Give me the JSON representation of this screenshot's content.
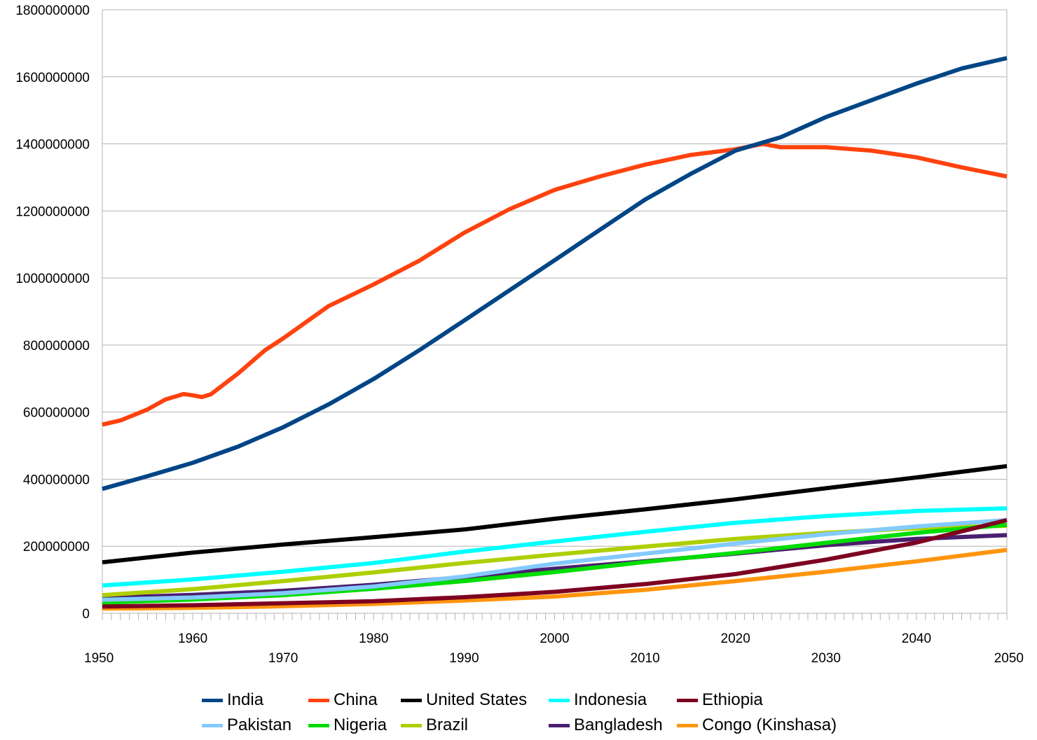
{
  "chart_data": {
    "type": "line",
    "title": "",
    "xlabel": "",
    "ylabel": "",
    "xlim": [
      1950,
      2050
    ],
    "ylim": [
      0,
      1800000000
    ],
    "grid": "horizontal",
    "legend_position": "bottom",
    "y_ticks": [
      "1800000000",
      "1600000000",
      "1400000000",
      "1200000000",
      "1000000000",
      "800000000",
      "600000000",
      "400000000",
      "200000000",
      "0"
    ],
    "x_ticks_upper": [
      "1960",
      "1980",
      "2000",
      "2020",
      "2040"
    ],
    "x_ticks_lower": [
      "1950",
      "1970",
      "1990",
      "2010",
      "2030",
      "2050"
    ],
    "series": [
      {
        "name": "India",
        "color": "#004586",
        "x": [
          1950,
          1955,
          1960,
          1965,
          1970,
          1975,
          1980,
          1985,
          1990,
          1995,
          2000,
          2005,
          2010,
          2015,
          2020,
          2025,
          2030,
          2035,
          2040,
          2045,
          2050
        ],
        "values": [
          371000000,
          409000000,
          449000000,
          497000000,
          555000000,
          623000000,
          699000000,
          784000000,
          873000000,
          963000000,
          1053000000,
          1144000000,
          1234000000,
          1310000000,
          1380000000,
          1420000000,
          1480000000,
          1530000000,
          1580000000,
          1625000000,
          1656000000
        ]
      },
      {
        "name": "China",
        "color": "#ff420e",
        "x": [
          1950,
          1952,
          1955,
          1957,
          1959,
          1960,
          1961,
          1962,
          1965,
          1968,
          1970,
          1975,
          1980,
          1985,
          1990,
          1995,
          2000,
          2005,
          2010,
          2015,
          2020,
          2023,
          2025,
          2030,
          2035,
          2040,
          2045,
          2050
        ],
        "values": [
          563000000,
          575000000,
          608000000,
          638000000,
          654000000,
          650000000,
          645000000,
          653000000,
          715000000,
          785000000,
          820000000,
          916000000,
          981000000,
          1051000000,
          1135000000,
          1205000000,
          1263000000,
          1303000000,
          1338000000,
          1367000000,
          1384000000,
          1400000000,
          1390000000,
          1390000000,
          1380000000,
          1360000000,
          1330000000,
          1303000000
        ]
      },
      {
        "name": "United States",
        "color": "#000000",
        "x": [
          1950,
          1960,
          1970,
          1980,
          1990,
          2000,
          2010,
          2020,
          2030,
          2040,
          2050
        ],
        "values": [
          152000000,
          181000000,
          205000000,
          227000000,
          250000000,
          282000000,
          310000000,
          340000000,
          373000000,
          405000000,
          439000000
        ]
      },
      {
        "name": "Indonesia",
        "color": "#00ffff",
        "x": [
          1950,
          1960,
          1970,
          1980,
          1990,
          2000,
          2010,
          2020,
          2030,
          2040,
          2050
        ],
        "values": [
          83000000,
          101000000,
          124000000,
          150000000,
          184000000,
          214000000,
          243000000,
          270000000,
          290000000,
          305000000,
          313000000
        ]
      },
      {
        "name": "Ethiopia",
        "color": "#7e0021",
        "x": [
          1950,
          1960,
          1970,
          1980,
          1990,
          2000,
          2010,
          2020,
          2030,
          2040,
          2050
        ],
        "values": [
          20000000,
          24000000,
          30000000,
          36000000,
          48000000,
          64000000,
          87000000,
          117000000,
          160000000,
          211000000,
          278000000
        ]
      },
      {
        "name": "Pakistan",
        "color": "#83caff",
        "x": [
          1950,
          1960,
          1970,
          1980,
          1990,
          2000,
          2010,
          2020,
          2030,
          2040,
          2050
        ],
        "values": [
          40000000,
          47000000,
          60000000,
          80000000,
          110000000,
          148000000,
          178000000,
          208000000,
          236000000,
          259000000,
          278000000
        ]
      },
      {
        "name": "Nigeria",
        "color": "#00dd00",
        "x": [
          1950,
          1960,
          1970,
          1980,
          1990,
          2000,
          2010,
          2020,
          2030,
          2040,
          2050
        ],
        "values": [
          32000000,
          41000000,
          54000000,
          73000000,
          96000000,
          123000000,
          153000000,
          180000000,
          210000000,
          240000000,
          264000000
        ]
      },
      {
        "name": "Brazil",
        "color": "#aecf00",
        "x": [
          1950,
          1960,
          1970,
          1980,
          1990,
          2000,
          2010,
          2020,
          2030,
          2040,
          2050
        ],
        "values": [
          54000000,
          72000000,
          96000000,
          122000000,
          150000000,
          175000000,
          199000000,
          222000000,
          240000000,
          254000000,
          261000000
        ]
      },
      {
        "name": "Bangladesh",
        "color": "#4b1f6f",
        "x": [
          1950,
          1960,
          1970,
          1980,
          1990,
          2000,
          2010,
          2020,
          2030,
          2040,
          2050
        ],
        "values": [
          46000000,
          55000000,
          67000000,
          85000000,
          108000000,
          133000000,
          155000000,
          178000000,
          203000000,
          222000000,
          233000000
        ]
      },
      {
        "name": "Congo (Kinshasa)",
        "color": "#ff950e",
        "x": [
          1950,
          1960,
          1970,
          1980,
          1990,
          2000,
          2010,
          2020,
          2030,
          2040,
          2050
        ],
        "values": [
          14000000,
          16000000,
          21000000,
          28000000,
          38000000,
          50000000,
          70000000,
          96000000,
          124000000,
          155000000,
          189000000
        ]
      }
    ]
  }
}
